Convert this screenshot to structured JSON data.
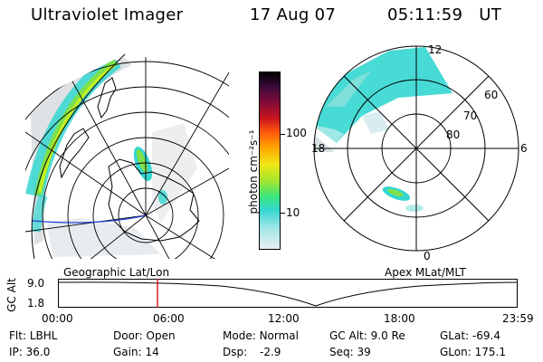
{
  "header": {
    "title": "Ultraviolet Imager",
    "date": "17 Aug 07",
    "time": "05:11:59",
    "tz": "UT"
  },
  "colorbar": {
    "unit_label": "photon cm⁻²s⁻¹",
    "ticks": [
      "100",
      "10"
    ]
  },
  "polar": {
    "mlat_labels": [
      "60",
      "70",
      "80"
    ],
    "mlt_labels": [
      "12",
      "18",
      "6",
      "0"
    ]
  },
  "panel_labels": {
    "left": "Geographic Lat/Lon",
    "right": "Apex MLat/MLT"
  },
  "altitude_strip": {
    "axis_label": "GC Alt",
    "ticks": [
      "9.0",
      "1.8"
    ],
    "time_ticks": [
      "00:00",
      "06:00",
      "12:00",
      "18:00",
      "23:59"
    ],
    "current_time_fraction": 0.2166
  },
  "info": {
    "row1": [
      {
        "key": "Flt:",
        "val": "LBHL"
      },
      {
        "key": "Door:",
        "val": "Open"
      },
      {
        "key": "Mode:",
        "val": "Normal"
      },
      {
        "key": "GC Alt:",
        "val": "9.0 Re"
      },
      {
        "key": "GLat:",
        "val": "-69.4"
      }
    ],
    "row2": [
      {
        "key": "IP:",
        "val": "36.0"
      },
      {
        "key": "Gain:",
        "val": "14"
      },
      {
        "key": "Dsp:",
        "val": "-2.9"
      },
      {
        "key": "Seq:",
        "val": "39"
      },
      {
        "key": "GLon:",
        "val": "175.1"
      }
    ]
  },
  "colors": {
    "marker": "#e0141a",
    "track": "#1f3fd6",
    "aurora_cyan": "#34d6d0",
    "aurora_green": "#7ee04a",
    "aurora_yellow": "#c8f01e"
  }
}
